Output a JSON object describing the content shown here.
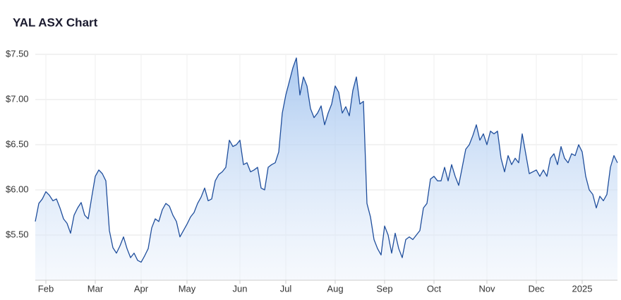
{
  "chart_data": {
    "type": "area",
    "title": "YAL ASX Chart",
    "categories": [
      null,
      null,
      null,
      "Feb",
      null,
      null,
      null,
      null,
      null,
      null,
      null,
      null,
      null,
      null,
      null,
      null,
      null,
      "Mar",
      null,
      null,
      null,
      null,
      null,
      null,
      null,
      null,
      null,
      null,
      null,
      null,
      "Apr",
      null,
      null,
      null,
      null,
      null,
      null,
      null,
      null,
      null,
      null,
      null,
      null,
      "May",
      null,
      null,
      null,
      null,
      null,
      null,
      null,
      null,
      null,
      null,
      null,
      null,
      null,
      null,
      "Jun",
      null,
      null,
      null,
      null,
      null,
      null,
      null,
      null,
      null,
      null,
      null,
      null,
      "Jul",
      null,
      null,
      null,
      null,
      null,
      null,
      null,
      null,
      null,
      null,
      null,
      null,
      null,
      "Aug",
      null,
      null,
      null,
      null,
      null,
      null,
      null,
      null,
      null,
      null,
      null,
      null,
      null,
      "Sep",
      null,
      null,
      null,
      null,
      null,
      null,
      null,
      null,
      null,
      null,
      null,
      null,
      null,
      "Oct",
      null,
      null,
      null,
      null,
      null,
      null,
      null,
      null,
      null,
      null,
      null,
      null,
      null,
      null,
      "Nov",
      null,
      null,
      null,
      null,
      null,
      null,
      null,
      null,
      null,
      null,
      null,
      null,
      null,
      "Dec",
      null,
      null,
      null,
      null,
      null,
      null,
      null,
      null,
      null,
      null,
      null,
      null,
      "2025",
      null,
      null,
      null,
      null,
      null,
      null,
      null,
      null,
      null,
      null
    ],
    "values": [
      5.65,
      5.85,
      5.9,
      5.98,
      5.94,
      5.88,
      5.9,
      5.8,
      5.68,
      5.63,
      5.52,
      5.72,
      5.8,
      5.86,
      5.72,
      5.68,
      5.92,
      6.15,
      6.22,
      6.18,
      6.1,
      5.55,
      5.36,
      5.3,
      5.38,
      5.48,
      5.35,
      5.25,
      5.3,
      5.22,
      5.2,
      5.27,
      5.35,
      5.58,
      5.68,
      5.65,
      5.78,
      5.85,
      5.82,
      5.72,
      5.65,
      5.48,
      5.55,
      5.62,
      5.7,
      5.75,
      5.85,
      5.92,
      6.02,
      5.88,
      5.9,
      6.1,
      6.17,
      6.2,
      6.25,
      6.55,
      6.48,
      6.5,
      6.55,
      6.28,
      6.3,
      6.2,
      6.22,
      6.25,
      6.02,
      6.0,
      6.25,
      6.28,
      6.3,
      6.42,
      6.85,
      7.05,
      7.2,
      7.35,
      7.46,
      7.05,
      7.25,
      7.15,
      6.9,
      6.8,
      6.85,
      6.93,
      6.72,
      6.85,
      6.95,
      7.15,
      7.08,
      6.85,
      6.92,
      6.82,
      7.1,
      7.25,
      6.95,
      6.98,
      5.85,
      5.7,
      5.45,
      5.35,
      5.28,
      5.6,
      5.5,
      5.3,
      5.52,
      5.35,
      5.25,
      5.45,
      5.48,
      5.45,
      5.5,
      5.55,
      5.8,
      5.85,
      6.12,
      6.15,
      6.1,
      6.1,
      6.25,
      6.1,
      6.28,
      6.15,
      6.05,
      6.25,
      6.45,
      6.5,
      6.6,
      6.72,
      6.55,
      6.62,
      6.5,
      6.65,
      6.62,
      6.65,
      6.35,
      6.2,
      6.38,
      6.28,
      6.35,
      6.3,
      6.62,
      6.4,
      6.18,
      6.2,
      6.22,
      6.15,
      6.22,
      6.15,
      6.35,
      6.4,
      6.28,
      6.48,
      6.35,
      6.3,
      6.4,
      6.38,
      6.5,
      6.42,
      6.15,
      6.0,
      5.95,
      5.8,
      5.93,
      5.88,
      5.95,
      6.25,
      6.38,
      6.3
    ],
    "color": "#1f4e9c",
    "ylim": [
      5,
      7.5
    ],
    "yticks": [
      {
        "value": 5.5,
        "label": "$5.50"
      },
      {
        "value": 6,
        "label": "$6.00"
      },
      {
        "value": 6.5,
        "label": "$6.50"
      },
      {
        "value": 7,
        "label": "$7.00"
      },
      {
        "value": 7.5,
        "label": "$7.50"
      }
    ],
    "grid": true
  }
}
